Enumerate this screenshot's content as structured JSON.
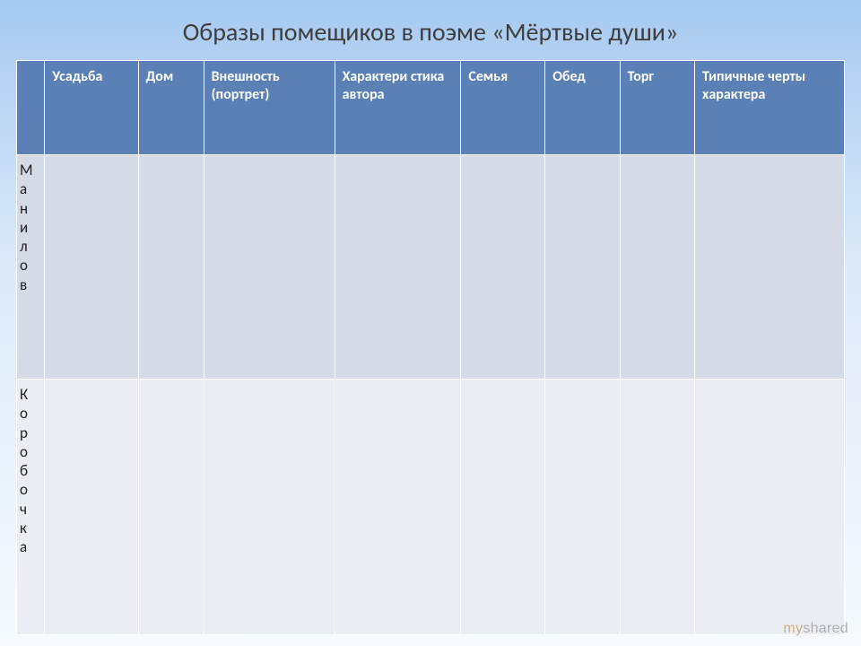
{
  "title": "Образы помещиков в поэме «Мёртвые души»",
  "columns": {
    "c1": "Усадьба",
    "c2": "Дом",
    "c3": "Внешность (портрет)",
    "c4": "Характери стика автора",
    "c5": "Семья",
    "c6": "Обед",
    "c7": "Торг",
    "c8": "Типичные черты характера"
  },
  "rows": {
    "r1": {
      "name": "Манилов"
    },
    "r2": {
      "name": "Коробочка"
    }
  },
  "watermark": {
    "prefix": "my",
    "suffix": "shared"
  },
  "style": {
    "header_bg": "#5a80b6",
    "header_fg": "#ffffff",
    "row_a_bg": "#d4dbe6",
    "row_b_bg": "#eaeef4",
    "border": "#ffffff",
    "title_color": "#3e3e3e",
    "title_fontsize": 28,
    "cell_fontsize": 16,
    "row1_height": 250,
    "row2_height": 285
  }
}
